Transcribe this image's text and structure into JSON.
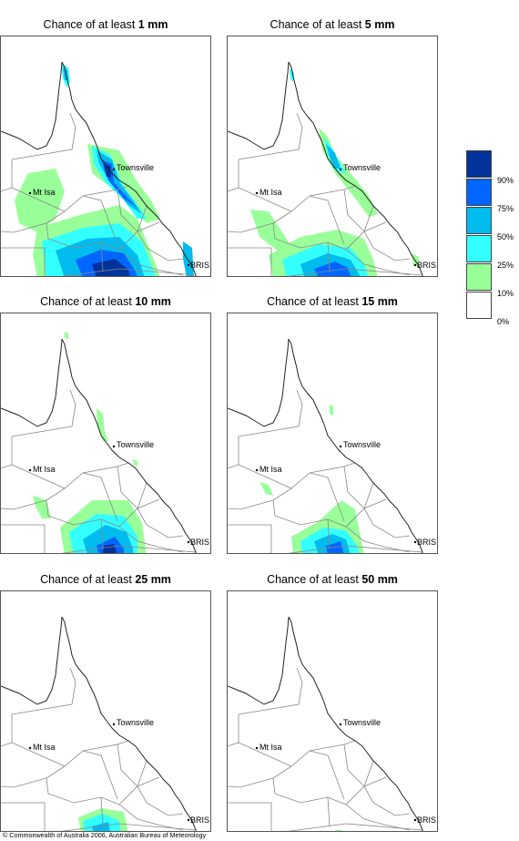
{
  "panels": [
    {
      "title_prefix": "Chance of at least ",
      "amount": "1 mm",
      "level": 1
    },
    {
      "title_prefix": "Chance of at least ",
      "amount": "5 mm",
      "level": 2
    },
    {
      "title_prefix": "Chance of at least ",
      "amount": "10 mm",
      "level": 3
    },
    {
      "title_prefix": "Chance of at least ",
      "amount": "15 mm",
      "level": 4
    },
    {
      "title_prefix": "Chance of at least ",
      "amount": "25 mm",
      "level": 5
    },
    {
      "title_prefix": "Chance of at least ",
      "amount": "50 mm",
      "level": 6
    }
  ],
  "places": {
    "townsville": "Townsville",
    "mt_isa": "Mt Isa",
    "bris": "BRIS"
  },
  "legend": {
    "colors": [
      "#003399",
      "#0066ff",
      "#00bbee",
      "#33ffff",
      "#99ff99",
      "#ffffff"
    ],
    "labels": [
      "90%",
      "75%",
      "50%",
      "25%",
      "10%",
      "0%"
    ]
  },
  "copyright": "© Commonwealth of Australia 2006, Australian Bureau of Meteorology"
}
